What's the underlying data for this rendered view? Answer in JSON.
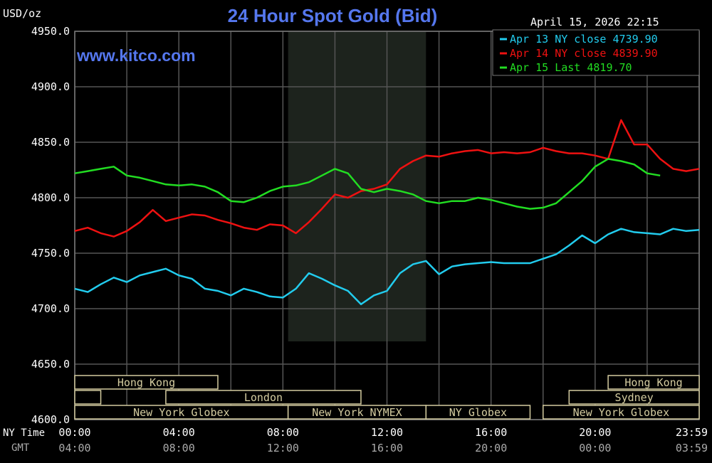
{
  "chart_data": {
    "type": "line",
    "title": "24 Hour Spot Gold (Bid)",
    "website": "www.kitco.com",
    "timestamp": "April 15, 2026 22:15",
    "ylabel": "USD/oz",
    "ylim": [
      4600,
      4950
    ],
    "y_ticks": [
      "4950.0",
      "4900.0",
      "4850.0",
      "4800.0",
      "4750.0",
      "4700.0",
      "4650.0",
      "4600.0"
    ],
    "xlim": [
      0,
      24
    ],
    "x_ticks_ny": [
      "00:00",
      "04:00",
      "08:00",
      "12:00",
      "16:00",
      "20:00",
      "23:59"
    ],
    "x_ticks_gmt": [
      "04:00",
      "08:00",
      "12:00",
      "16:00",
      "20:00",
      "00:00",
      "03:59"
    ],
    "x_row_labels": [
      "NY Time",
      "GMT"
    ],
    "grid": true,
    "nymex_shade": [
      8.2,
      13.5
    ],
    "colors": {
      "apr13": "#22ccee",
      "apr14": "#ee1111",
      "apr15": "#22dd22",
      "title": "#5577ee",
      "grid": "#555555",
      "band": "#d4cca0"
    },
    "legend": [
      {
        "text": "Apr 13 NY close 4739.90",
        "color": "#22ccee"
      },
      {
        "text": "Apr 14 NY close 4839.90",
        "color": "#ee1111"
      },
      {
        "text": "Apr 15 Last 4819.70",
        "color": "#22dd22"
      }
    ],
    "sessions": [
      {
        "row": 0,
        "label": "Hong Kong",
        "start": 0,
        "end": 5.5
      },
      {
        "row": 0,
        "label": "Hong Kong",
        "start": 20.5,
        "end": 24
      },
      {
        "row": 1,
        "label": "",
        "start": 0,
        "end": 1
      },
      {
        "row": 1,
        "label": "London",
        "start": 3.5,
        "end": 11
      },
      {
        "row": 1,
        "label": "Sydney",
        "start": 19,
        "end": 24
      },
      {
        "row": 2,
        "label": "New York Globex",
        "start": 0,
        "end": 8.2
      },
      {
        "row": 2,
        "label": "New York NYMEX",
        "start": 8.2,
        "end": 13.5
      },
      {
        "row": 2,
        "label": "NY Globex",
        "start": 13.5,
        "end": 17.5
      },
      {
        "row": 2,
        "label": "New York Globex",
        "start": 18,
        "end": 24
      }
    ],
    "series": [
      {
        "name": "Apr 13 NY close 4739.90",
        "color": "#22ccee",
        "x": [
          0,
          0.5,
          1,
          1.5,
          2,
          2.5,
          3,
          3.5,
          4,
          4.5,
          5,
          5.5,
          6,
          6.5,
          7,
          7.5,
          8,
          8.5,
          9,
          9.5,
          10,
          10.5,
          11,
          11.5,
          12,
          12.5,
          13,
          13.5,
          14,
          14.5,
          15,
          15.5,
          16,
          16.5,
          17,
          17.5,
          18,
          18.5,
          19,
          19.5,
          20,
          20.5,
          21,
          21.5,
          22,
          22.5,
          23,
          23.5,
          24
        ],
        "y": [
          4718,
          4715,
          4722,
          4728,
          4724,
          4730,
          4733,
          4736,
          4730,
          4727,
          4718,
          4716,
          4712,
          4718,
          4715,
          4711,
          4710,
          4718,
          4732,
          4727,
          4721,
          4716,
          4704,
          4712,
          4716,
          4732,
          4740,
          4743,
          4731,
          4738,
          4740,
          4741,
          4742,
          4741,
          4741,
          4741,
          4745,
          4749,
          4757,
          4766,
          4759,
          4767,
          4772,
          4769,
          4768,
          4767,
          4772,
          4770,
          4771
        ]
      },
      {
        "name": "Apr 14 NY close 4839.90",
        "color": "#ee1111",
        "x": [
          0,
          0.5,
          1,
          1.5,
          2,
          2.5,
          3,
          3.5,
          4,
          4.5,
          5,
          5.5,
          6,
          6.5,
          7,
          7.5,
          8,
          8.5,
          9,
          9.5,
          10,
          10.5,
          11,
          11.5,
          12,
          12.5,
          13,
          13.5,
          14,
          14.5,
          15,
          15.5,
          16,
          16.5,
          17,
          17.5,
          18,
          18.5,
          19,
          19.5,
          20,
          20.5,
          21,
          21.5,
          22,
          22.5,
          23,
          23.5,
          24
        ],
        "y": [
          4770,
          4773,
          4768,
          4765,
          4770,
          4778,
          4789,
          4779,
          4782,
          4785,
          4784,
          4780,
          4777,
          4773,
          4771,
          4776,
          4775,
          4768,
          4778,
          4790,
          4803,
          4800,
          4806,
          4808,
          4812,
          4826,
          4833,
          4838,
          4837,
          4840,
          4842,
          4843,
          4840,
          4841,
          4840,
          4841,
          4845,
          4842,
          4840,
          4840,
          4838,
          4835,
          4870,
          4848,
          4848,
          4835,
          4826,
          4824,
          4826
        ]
      },
      {
        "name": "Apr 15 Last 4819.70",
        "color": "#22dd22",
        "x": [
          0,
          0.5,
          1,
          1.5,
          2,
          2.5,
          3,
          3.5,
          4,
          4.5,
          5,
          5.5,
          6,
          6.5,
          7,
          7.5,
          8,
          8.5,
          9,
          9.5,
          10,
          10.5,
          11,
          11.5,
          12,
          12.5,
          13,
          13.5,
          14,
          14.5,
          15,
          15.5,
          16,
          16.5,
          17,
          17.5,
          18,
          18.5,
          19,
          19.5,
          20,
          20.5,
          21,
          21.5,
          22,
          22.5
        ],
        "y": [
          4822,
          4824,
          4826,
          4828,
          4820,
          4818,
          4815,
          4812,
          4811,
          4812,
          4810,
          4805,
          4797,
          4796,
          4800,
          4806,
          4810,
          4811,
          4814,
          4820,
          4826,
          4822,
          4808,
          4805,
          4808,
          4806,
          4803,
          4797,
          4795,
          4797,
          4797,
          4800,
          4798,
          4795,
          4792,
          4790,
          4791,
          4795,
          4805,
          4815,
          4828,
          4835,
          4833,
          4830,
          4822,
          4820
        ]
      }
    ]
  }
}
